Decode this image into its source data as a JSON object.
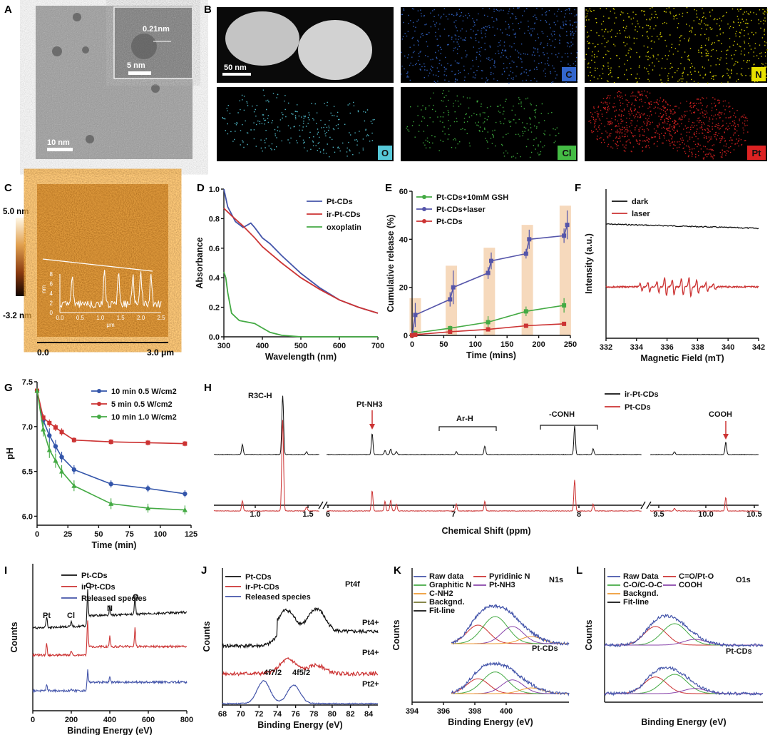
{
  "panels": {
    "A": {
      "letter": "A",
      "scale_main": "10 nm",
      "scale_inset": "5 nm",
      "lattice": "0.21nm"
    },
    "B": {
      "letter": "B",
      "scale": "50 nm",
      "elements": [
        {
          "label": "C",
          "color": "#3366cc"
        },
        {
          "label": "N",
          "color": "#e8e000"
        },
        {
          "label": "O",
          "color": "#56c8d8"
        },
        {
          "label": "Cl",
          "color": "#44bb44"
        },
        {
          "label": "Pt",
          "color": "#dd2222"
        }
      ]
    },
    "C": {
      "letter": "C",
      "scale_top": "5.0 nm",
      "scale_bottom": "-3.2 nm",
      "x_start": "0.0",
      "x_end": "3.0 μm",
      "inset_yticks": [
        "8",
        "6",
        "4",
        "2",
        "0"
      ],
      "inset_ylabel": "nm",
      "inset_xticks": [
        "0.0",
        "0.5",
        "1.0",
        "1.5",
        "2.0",
        "2.5"
      ],
      "inset_xlabel": "μm"
    },
    "D": {
      "letter": "D",
      "xlabel": "Wavelength (nm)",
      "ylabel": "Absorbance"
    },
    "E": {
      "letter": "E",
      "xlabel": "Time (mins)",
      "ylabel": "Cumulative release (%)"
    },
    "F": {
      "letter": "F",
      "xlabel": "Magnetic Field (mT)",
      "ylabel": "Intensity (a.u.)"
    },
    "G": {
      "letter": "G",
      "xlabel": "Time (min)",
      "ylabel": "pH"
    },
    "H": {
      "letter": "H",
      "xlabel": "Chemical Shift (ppm)",
      "annotations": [
        "R3C-H",
        "Pt-NH3",
        "Ar-H",
        "-CONH",
        "COOH"
      ]
    },
    "I": {
      "letter": "I",
      "xlabel": "Binding Energy (eV)",
      "ylabel": "Counts",
      "peak_labels": [
        "Pt",
        "Cl",
        "C",
        "N",
        "O"
      ]
    },
    "J": {
      "letter": "J",
      "xlabel": "Binding Energy (eV)",
      "ylabel": "Counts",
      "title": "Pt4f",
      "annotations": [
        "Pt4+",
        "Pt4+",
        "Pt2+",
        "4f7/2",
        "4f5/2"
      ]
    },
    "K": {
      "letter": "K",
      "xlabel": "Binding Energy (eV)",
      "ylabel": "Counts",
      "title": "N1s",
      "sample": "Pt-CDs"
    },
    "L": {
      "letter": "L",
      "xlabel": "Binding Energy (eV)",
      "ylabel": "Counts",
      "title": "O1s",
      "sample": "Pt-CDs"
    }
  },
  "chart_data": [
    {
      "panel": "D",
      "type": "line",
      "title": "",
      "xlabel": "Wavelength (nm)",
      "ylabel": "Absorbance",
      "xlim": [
        300,
        700
      ],
      "ylim": [
        0,
        1.0
      ],
      "xticks": [
        300,
        400,
        500,
        600,
        700
      ],
      "yticks": [
        0.0,
        0.2,
        0.4,
        0.6,
        0.8,
        1.0
      ],
      "series": [
        {
          "name": "Pt-CDs",
          "color": "#4455aa",
          "x": [
            300,
            310,
            330,
            350,
            370,
            380,
            400,
            420,
            450,
            500,
            550,
            600,
            650,
            700
          ],
          "y": [
            1.0,
            0.88,
            0.78,
            0.74,
            0.77,
            0.74,
            0.67,
            0.63,
            0.55,
            0.43,
            0.33,
            0.25,
            0.2,
            0.16
          ]
        },
        {
          "name": "ir-Pt-CDs",
          "color": "#cc3333",
          "x": [
            300,
            320,
            350,
            380,
            400,
            450,
            500,
            550,
            600,
            650,
            700
          ],
          "y": [
            0.87,
            0.82,
            0.75,
            0.67,
            0.61,
            0.5,
            0.4,
            0.32,
            0.25,
            0.2,
            0.16
          ]
        },
        {
          "name": "oxoplatin",
          "color": "#44aa44",
          "x": [
            300,
            305,
            310,
            320,
            340,
            360,
            380,
            400,
            420,
            450,
            500,
            550,
            600,
            700
          ],
          "y": [
            0.44,
            0.4,
            0.3,
            0.16,
            0.11,
            0.1,
            0.09,
            0.06,
            0.03,
            0.01,
            0.0,
            0.0,
            0.0,
            0.0
          ]
        }
      ]
    },
    {
      "panel": "E",
      "type": "line",
      "xlabel": "Time (mins)",
      "ylabel": "Cumulative release (%)",
      "xlim": [
        0,
        250
      ],
      "ylim": [
        0,
        60
      ],
      "xticks": [
        0,
        50,
        100,
        150,
        200,
        250
      ],
      "yticks": [
        0,
        20,
        40,
        60
      ],
      "series": [
        {
          "name": "Pt-CDs+10mM GSH",
          "color": "#44aa44",
          "x": [
            0,
            5,
            60,
            120,
            180,
            240
          ],
          "y": [
            0,
            1,
            3,
            5.5,
            10,
            12.5
          ],
          "err": [
            0,
            0.5,
            1,
            2.5,
            2,
            3
          ]
        },
        {
          "name": "Pt-CDs+laser",
          "color": "#5555aa",
          "x": [
            0,
            5,
            60,
            65,
            120,
            125,
            180,
            185,
            240,
            245
          ],
          "y": [
            0,
            8.5,
            15,
            20,
            26,
            31,
            34,
            40,
            41.5,
            46
          ],
          "err": [
            0,
            5,
            3,
            7,
            2.5,
            3.5,
            2,
            4,
            3,
            6
          ]
        },
        {
          "name": "Pt-CDs",
          "color": "#cc3333",
          "x": [
            0,
            5,
            60,
            120,
            180,
            240
          ],
          "y": [
            0,
            0.3,
            1.5,
            2.5,
            4,
            4.8
          ],
          "err": [
            0,
            0.2,
            0.5,
            0.6,
            0.6,
            0.7
          ]
        }
      ],
      "highlight_x": [
        5,
        62,
        122,
        182,
        242
      ]
    },
    {
      "panel": "F",
      "type": "line",
      "xlabel": "Magnetic Field (mT)",
      "ylabel": "Intensity (a.u.)",
      "xlim": [
        332,
        342
      ],
      "xticks": [
        332,
        334,
        336,
        338,
        340,
        342
      ],
      "series": [
        {
          "name": "dark",
          "color": "#111111"
        },
        {
          "name": "laser",
          "color": "#cc3333"
        }
      ]
    },
    {
      "panel": "G",
      "type": "line",
      "xlabel": "Time (min)",
      "ylabel": "pH",
      "xlim": [
        0,
        125
      ],
      "ylim": [
        5.9,
        7.5
      ],
      "xticks": [
        0,
        25,
        50,
        75,
        100,
        125
      ],
      "yticks": [
        6.0,
        6.5,
        7.0,
        7.5
      ],
      "series": [
        {
          "name": "10 min 0.5 W/cm2",
          "color": "#3355aa",
          "x": [
            0,
            5,
            10,
            15,
            20,
            30,
            60,
            90,
            120
          ],
          "y": [
            7.4,
            7.07,
            6.9,
            6.78,
            6.66,
            6.52,
            6.36,
            6.31,
            6.25
          ],
          "err": [
            0.02,
            0.06,
            0.08,
            0.07,
            0.06,
            0.05,
            0.04,
            0.04,
            0.04
          ]
        },
        {
          "name": "5 min 0.5 W/cm2",
          "color": "#cc3333",
          "x": [
            0,
            5,
            10,
            15,
            20,
            30,
            60,
            90,
            120
          ],
          "y": [
            7.4,
            7.1,
            7.04,
            6.99,
            6.94,
            6.85,
            6.83,
            6.82,
            6.81
          ],
          "err": [
            0.02,
            0.04,
            0.04,
            0.04,
            0.04,
            0.03,
            0.03,
            0.03,
            0.03
          ]
        },
        {
          "name": "10 min 1.0 W/cm2",
          "color": "#44aa44",
          "x": [
            0,
            5,
            10,
            15,
            20,
            30,
            60,
            90,
            120
          ],
          "y": [
            7.4,
            6.97,
            6.74,
            6.62,
            6.5,
            6.34,
            6.14,
            6.09,
            6.07
          ],
          "err": [
            0.02,
            0.08,
            0.09,
            0.08,
            0.07,
            0.06,
            0.06,
            0.05,
            0.05
          ]
        }
      ]
    },
    {
      "panel": "H",
      "type": "line",
      "xlabel": "Chemical Shift (ppm)",
      "segments": [
        {
          "xlim": [
            0.8,
            1.6
          ],
          "xticks": [
            "1.0",
            "1.5"
          ]
        },
        {
          "xlim": [
            6,
            8.5
          ],
          "xticks": [
            "6",
            "7",
            "8"
          ]
        },
        {
          "xlim": [
            9.5,
            10.5
          ],
          "xticks": [
            "9.5",
            "10.0",
            "10.5"
          ]
        }
      ],
      "series": [
        {
          "name": "ir-Pt-CDs",
          "color": "#111111"
        },
        {
          "name": "Pt-CDs",
          "color": "#cc3333"
        }
      ]
    },
    {
      "panel": "I",
      "type": "line",
      "xlabel": "Binding Energy (eV)",
      "ylabel": "Counts",
      "xlim": [
        0,
        800
      ],
      "xticks": [
        0,
        200,
        400,
        600,
        800
      ],
      "series": [
        {
          "name": "Pt-CDs",
          "color": "#111111"
        },
        {
          "name": "ir-Pt-CDs",
          "color": "#cc3333"
        },
        {
          "name": "Released species",
          "color": "#4455aa"
        }
      ]
    },
    {
      "panel": "J",
      "type": "line",
      "xlabel": "Binding Energy (eV)",
      "ylabel": "Counts",
      "xlim": [
        68,
        85
      ],
      "xticks": [
        68,
        70,
        72,
        74,
        76,
        78,
        80,
        82,
        84
      ],
      "series": [
        {
          "name": "Pt-CDs",
          "color": "#111111"
        },
        {
          "name": "ir-Pt-CDs",
          "color": "#cc3333"
        },
        {
          "name": "Released species",
          "color": "#4455aa"
        }
      ]
    },
    {
      "panel": "K",
      "type": "line",
      "xlabel": "Binding Energy (eV)",
      "ylabel": "Counts",
      "xlim": [
        394,
        404
      ],
      "xticks": [
        394,
        396,
        398,
        400
      ],
      "series": [
        {
          "name": "Raw data",
          "color": "#4455aa"
        },
        {
          "name": "Graphitic N",
          "color": "#44aa44"
        },
        {
          "name": "C-NH2",
          "color": "#ee9933"
        },
        {
          "name": "Backgnd.",
          "color": "#777733"
        },
        {
          "name": "Fit-line",
          "color": "#111111"
        },
        {
          "name": "Pyridinic N",
          "color": "#cc3333"
        },
        {
          "name": "Pt-NH3",
          "color": "#8844aa"
        }
      ]
    },
    {
      "panel": "L",
      "type": "line",
      "xlabel": "Binding Energy (eV)",
      "ylabel": "Counts",
      "series": [
        {
          "name": "Raw Data",
          "color": "#4455aa"
        },
        {
          "name": "C-O/C-O-C",
          "color": "#44aa44"
        },
        {
          "name": "Backgnd.",
          "color": "#ee9933"
        },
        {
          "name": "Fit-line",
          "color": "#111111"
        },
        {
          "name": "C=O/Pt-O",
          "color": "#cc3333"
        },
        {
          "name": "COOH",
          "color": "#8844aa"
        }
      ]
    }
  ]
}
